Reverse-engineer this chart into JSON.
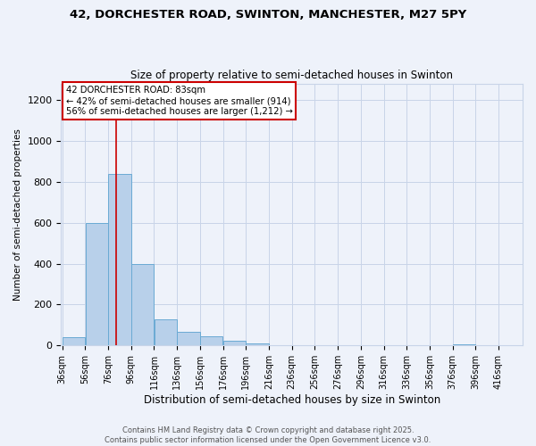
{
  "title_line1": "42, DORCHESTER ROAD, SWINTON, MANCHESTER, M27 5PY",
  "title_line2": "Size of property relative to semi-detached houses in Swinton",
  "xlabel": "Distribution of semi-detached houses by size in Swinton",
  "ylabel": "Number of semi-detached properties",
  "bin_starts": [
    36,
    56,
    76,
    96,
    116,
    136,
    156,
    176,
    196,
    216,
    236,
    256,
    276,
    296,
    316,
    336,
    356,
    376,
    396,
    416
  ],
  "bin_width": 20,
  "bar_heights": [
    40,
    600,
    840,
    400,
    130,
    65,
    45,
    25,
    10,
    0,
    0,
    0,
    0,
    0,
    0,
    0,
    0,
    5,
    0,
    0
  ],
  "bar_color": "#b8d0ea",
  "bar_edge_color": "#6aaad4",
  "property_size": 83,
  "annotation_title": "42 DORCHESTER ROAD: 83sqm",
  "annotation_line2": "← 42% of semi-detached houses are smaller (914)",
  "annotation_line3": "56% of semi-detached houses are larger (1,212) →",
  "red_line_color": "#cc0000",
  "annotation_box_color": "#ffffff",
  "annotation_box_edge": "#cc0000",
  "ylim": [
    0,
    1280
  ],
  "yticks": [
    0,
    200,
    400,
    600,
    800,
    1000,
    1200
  ],
  "footer_line1": "Contains HM Land Registry data © Crown copyright and database right 2025.",
  "footer_line2": "Contains public sector information licensed under the Open Government Licence v3.0.",
  "background_color": "#eef2fa",
  "grid_color": "#c8d4e8"
}
